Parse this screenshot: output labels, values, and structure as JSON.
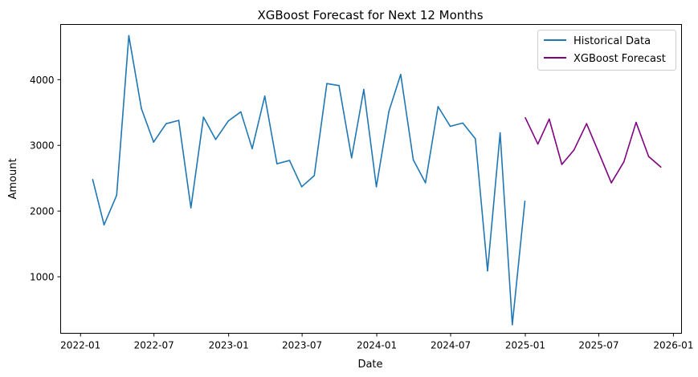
{
  "chart_data": {
    "type": "line",
    "title": "XGBoost Forecast for Next 12 Months",
    "xlabel": "Date",
    "ylabel": "Amount",
    "x_ticks": [
      "2022-01",
      "2022-07",
      "2023-01",
      "2023-07",
      "2024-01",
      "2024-07",
      "2025-01",
      "2025-07",
      "2026-01"
    ],
    "y_ticks": [
      1000,
      2000,
      3000,
      4000
    ],
    "xlim": [
      "2021-11-13",
      "2026-01-21"
    ],
    "ylim": [
      140,
      4840
    ],
    "grid": false,
    "legend_position": "top-right",
    "series": [
      {
        "name": "Historical Data",
        "color": "#1f77b4",
        "x": [
          "2022-01-31",
          "2022-02-28",
          "2022-03-31",
          "2022-04-30",
          "2022-05-31",
          "2022-06-30",
          "2022-07-31",
          "2022-08-31",
          "2022-09-30",
          "2022-10-31",
          "2022-11-30",
          "2022-12-31",
          "2023-01-31",
          "2023-02-28",
          "2023-03-31",
          "2023-04-30",
          "2023-05-31",
          "2023-06-30",
          "2023-07-31",
          "2023-08-31",
          "2023-09-30",
          "2023-10-31",
          "2023-11-30",
          "2023-12-31",
          "2024-01-31",
          "2024-02-29",
          "2024-03-31",
          "2024-04-30",
          "2024-05-31",
          "2024-06-30",
          "2024-07-31",
          "2024-08-31",
          "2024-09-30",
          "2024-10-31",
          "2024-11-30",
          "2024-12-31"
        ],
        "y": [
          2480,
          1790,
          2240,
          4670,
          3560,
          3050,
          3330,
          3380,
          2050,
          3430,
          3090,
          3370,
          3510,
          2950,
          3750,
          2720,
          2770,
          2370,
          2540,
          3940,
          3910,
          2810,
          3850,
          2370,
          3520,
          4080,
          2780,
          2430,
          3590,
          3290,
          3340,
          3100,
          1090,
          3190,
          270,
          2150
        ]
      },
      {
        "name": "XGBoost Forecast",
        "color": "#800080",
        "x": [
          "2025-01-01",
          "2025-02-01",
          "2025-03-01",
          "2025-04-01",
          "2025-05-01",
          "2025-06-01",
          "2025-07-01",
          "2025-08-01",
          "2025-09-01",
          "2025-10-01",
          "2025-11-01",
          "2025-12-01"
        ],
        "y": [
          3420,
          3020,
          3400,
          2710,
          2930,
          3330,
          2890,
          2430,
          2750,
          3350,
          2830,
          2670
        ]
      }
    ]
  }
}
